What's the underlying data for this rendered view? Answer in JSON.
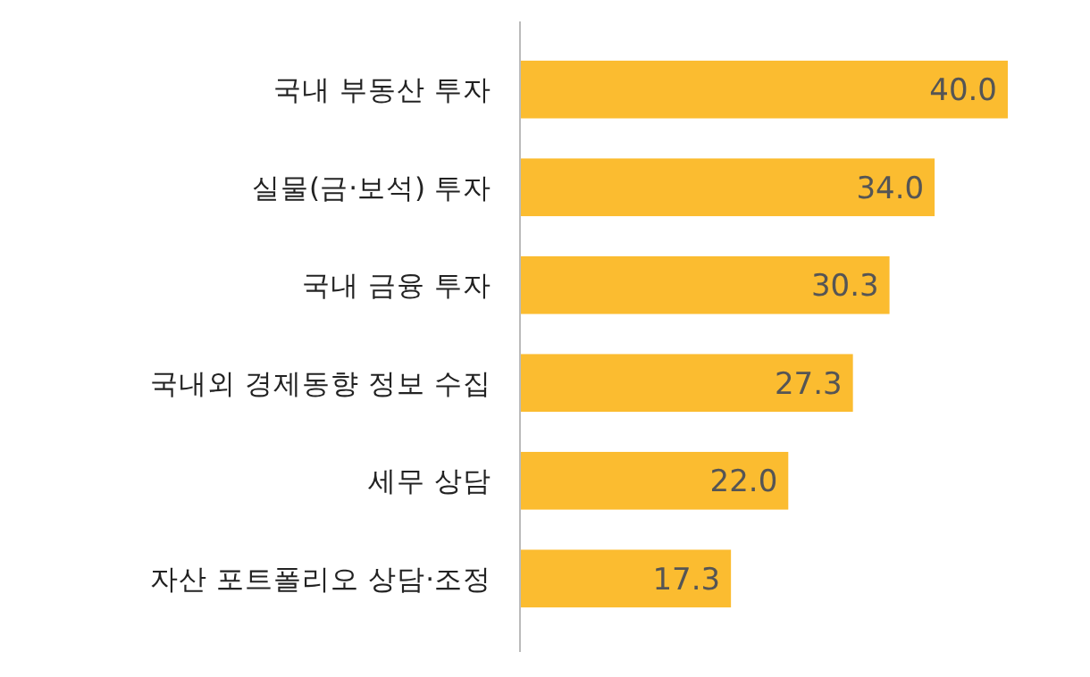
{
  "chart_data": {
    "type": "bar",
    "orientation": "horizontal",
    "categories": [
      "국내 부동산 투자",
      "실물(금·보석) 투자",
      "국내 금융 투자",
      "국내외 경제동향 정보 수집",
      "세무 상담",
      "자산 포트폴리오 상담·조정"
    ],
    "values": [
      40.0,
      34.0,
      30.3,
      27.3,
      22.0,
      17.3
    ],
    "value_labels": [
      "40.0",
      "34.0",
      "30.3",
      "27.3",
      "22.0",
      "17.3"
    ],
    "color": "#fbbc30"
  }
}
